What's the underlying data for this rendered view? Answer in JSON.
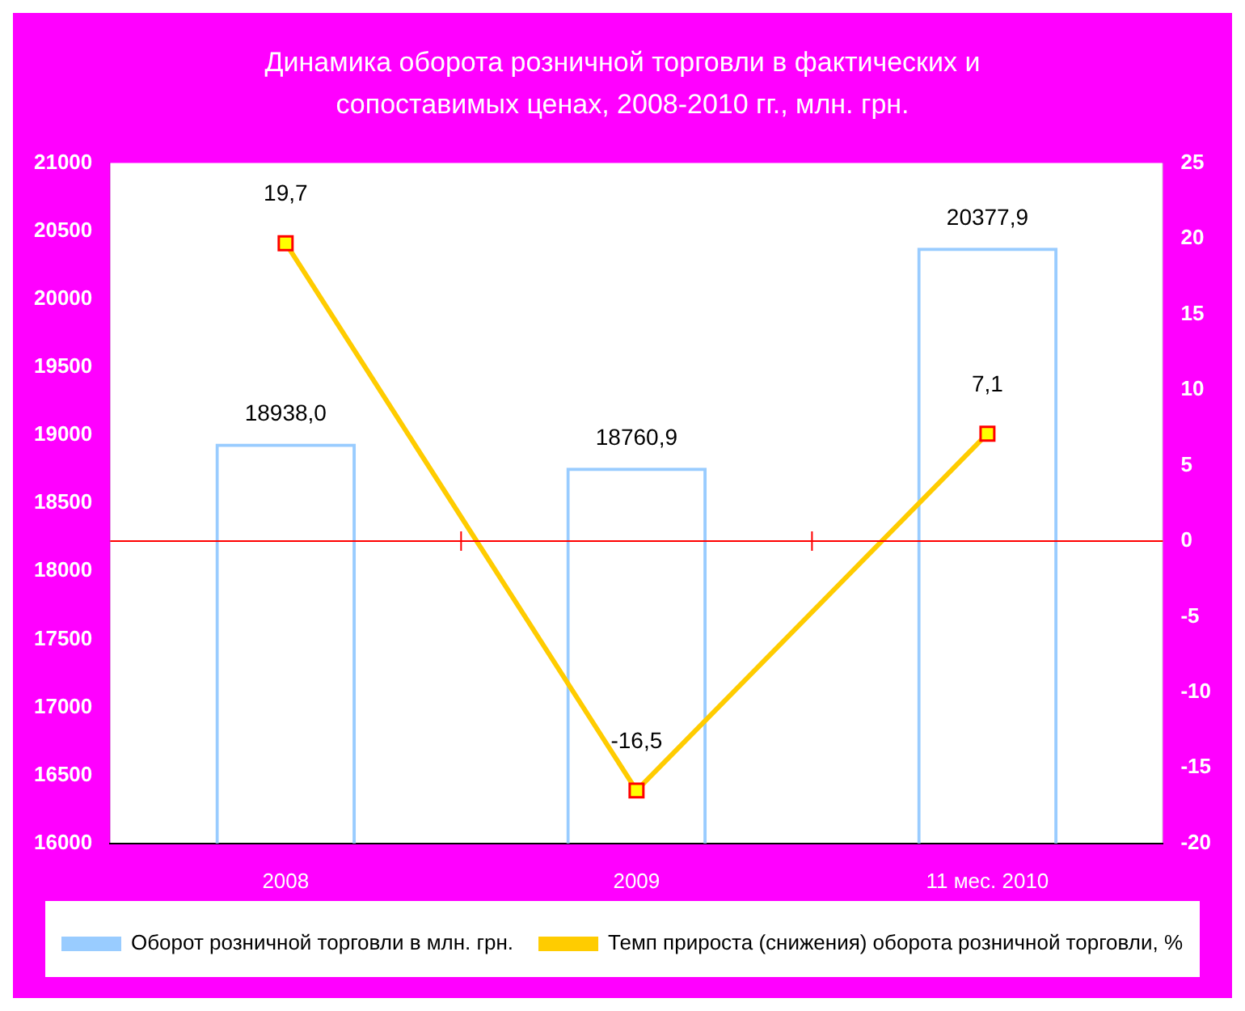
{
  "chart_data": {
    "type": "bar",
    "title": "Динамика оборота розничной торговли в фактических и сопоставимых ценах, 2008-2010 гг., млн. грн.",
    "categories": [
      "2008",
      "2009",
      "11 мес. 2010"
    ],
    "series": [
      {
        "name": "Оборот розничной торговли в млн. грн.",
        "color": "#99ccff",
        "values": [
          18938.0,
          18760.9,
          20377.9
        ],
        "value_labels": [
          "18938,0",
          "18760,9",
          "20377,9"
        ]
      },
      {
        "name": "Темп прироста (снижения) оборота розничной торговли, %",
        "type": "line",
        "axis": "y2",
        "color": "#ffcc00",
        "marker": "square",
        "values": [
          19.7,
          -16.5,
          7.1
        ],
        "value_labels": [
          "19,7",
          "-16,5",
          "7,1"
        ]
      }
    ],
    "ylim": [
      16000,
      21000
    ],
    "yticks": [
      16000,
      16500,
      17000,
      17500,
      18000,
      18500,
      19000,
      19500,
      20000,
      20500,
      21000
    ],
    "y2lim": [
      -20,
      25
    ],
    "y2ticks": [
      -20,
      -15,
      -10,
      -5,
      0,
      5,
      10,
      15,
      20,
      25
    ],
    "ref_lines": [
      {
        "axis": "y2",
        "value": 0,
        "color": "#ff0000"
      }
    ],
    "grid": false,
    "legend": "bottom"
  }
}
